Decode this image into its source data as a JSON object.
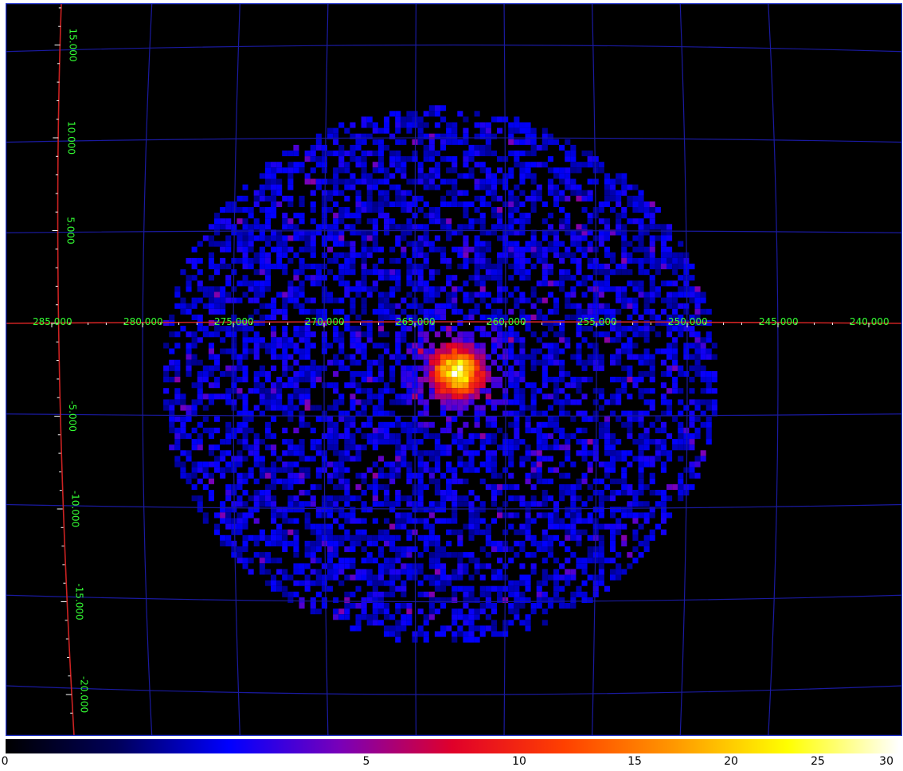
{
  "image": {
    "kind": "all-sky count map",
    "colormap_stops": [
      "#000000",
      "#00005a",
      "#0000ff",
      "#7a00b8",
      "#e0002a",
      "#ff4000",
      "#ff9900",
      "#ffff00",
      "#ffffff"
    ],
    "grid_color": "#1a1aa0",
    "axis_color": "#cc2222",
    "label_color": "#33ff33",
    "source": {
      "lon_value": 262.5,
      "lat_value": -2.5
    }
  },
  "longitude_axis": {
    "labels": [
      "285.000",
      "280.000",
      "275.000",
      "270.000",
      "265.000",
      "260.000",
      "255.000",
      "250.000",
      "245.000",
      "240.000"
    ]
  },
  "latitude_axis": {
    "labels": [
      "15.000",
      "10.000",
      "5.000",
      "-5.000",
      "-10.000",
      "-15.000",
      "-20.000"
    ]
  },
  "colorbar": {
    "ticks": [
      {
        "value": 0,
        "label": "0"
      },
      {
        "value": 5,
        "label": "5"
      },
      {
        "value": 10,
        "label": "10"
      },
      {
        "value": 15,
        "label": "15"
      },
      {
        "value": 20,
        "label": "20"
      },
      {
        "value": 25,
        "label": "25"
      },
      {
        "value": 30,
        "label": "30"
      }
    ]
  }
}
